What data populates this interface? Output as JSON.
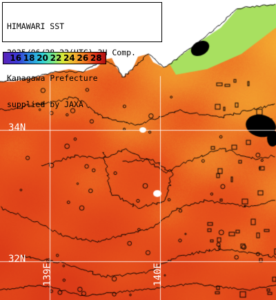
{
  "title": {
    "line1": "HIMAWARI SST",
    "line2": "2025/06/28 22(UTC) 3H Comp.",
    "line3": "Kanagawa Prefecture",
    "line4": "supplied by JAXA"
  },
  "colorbar": {
    "ticks": [
      "16",
      "18",
      "20",
      "22",
      "24",
      "26",
      "28"
    ]
  },
  "latitude_labels": [
    "34N",
    "32N"
  ],
  "longitude_labels": [
    "139E",
    "140E"
  ],
  "colors": {
    "land": "#ffffff",
    "coast": "#000000",
    "grid": "#ffffff",
    "warm_sea": "#e8541c",
    "mid_sea": "#f08a2a",
    "cool_sea": "#f5b032",
    "cold_sea": "#a8e060",
    "missing_data": "#000000"
  }
}
